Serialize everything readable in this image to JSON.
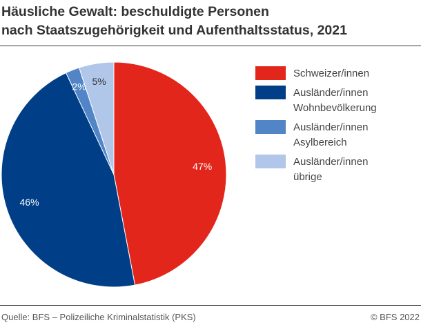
{
  "title": "Häusliche Gewalt: beschuldigte Personen nach Staatszugehörigkeit und Aufenthaltsstatus, 2021",
  "title_lines": [
    "Häusliche Gewalt: beschuldigte Personen",
    "nach Staatszugehörigkeit und Aufenthaltsstatus, 2021"
  ],
  "chart_data": {
    "type": "pie",
    "title": "Häusliche Gewalt: beschuldigte Personen nach Staatszugehörigkeit und Aufenthaltsstatus, 2021",
    "start": "top",
    "direction": "clockwise",
    "legend_position": "right",
    "slices": [
      {
        "name": "Schweizer/innen",
        "value": 47,
        "label": "47%",
        "color": "#e3261b",
        "label_color": "#ffffff"
      },
      {
        "name": "Ausländer/innen Wohnbevölkerung",
        "value": 46,
        "label": "46%",
        "color": "#003f87",
        "label_color": "#ffffff"
      },
      {
        "name": "Ausländer/innen Asylbereich",
        "value": 2,
        "label": "2%",
        "color": "#5185c7",
        "label_color": "#ffffff"
      },
      {
        "name": "Ausländer/innen übrige",
        "value": 5,
        "label": "5%",
        "color": "#b0c7e9",
        "label_color": "#333333"
      }
    ]
  },
  "legend": [
    {
      "lines": [
        "Schweizer/innen"
      ]
    },
    {
      "lines": [
        "Ausländer/innen",
        "Wohnbevölkerung"
      ]
    },
    {
      "lines": [
        "Ausländer/innen",
        "Asylbereich"
      ]
    },
    {
      "lines": [
        "Ausländer/innen",
        "übrige"
      ]
    }
  ],
  "footer": {
    "source": "Quelle: BFS – Polizeiliche Kriminalstatistik (PKS)",
    "copyright": "© BFS 2022"
  }
}
